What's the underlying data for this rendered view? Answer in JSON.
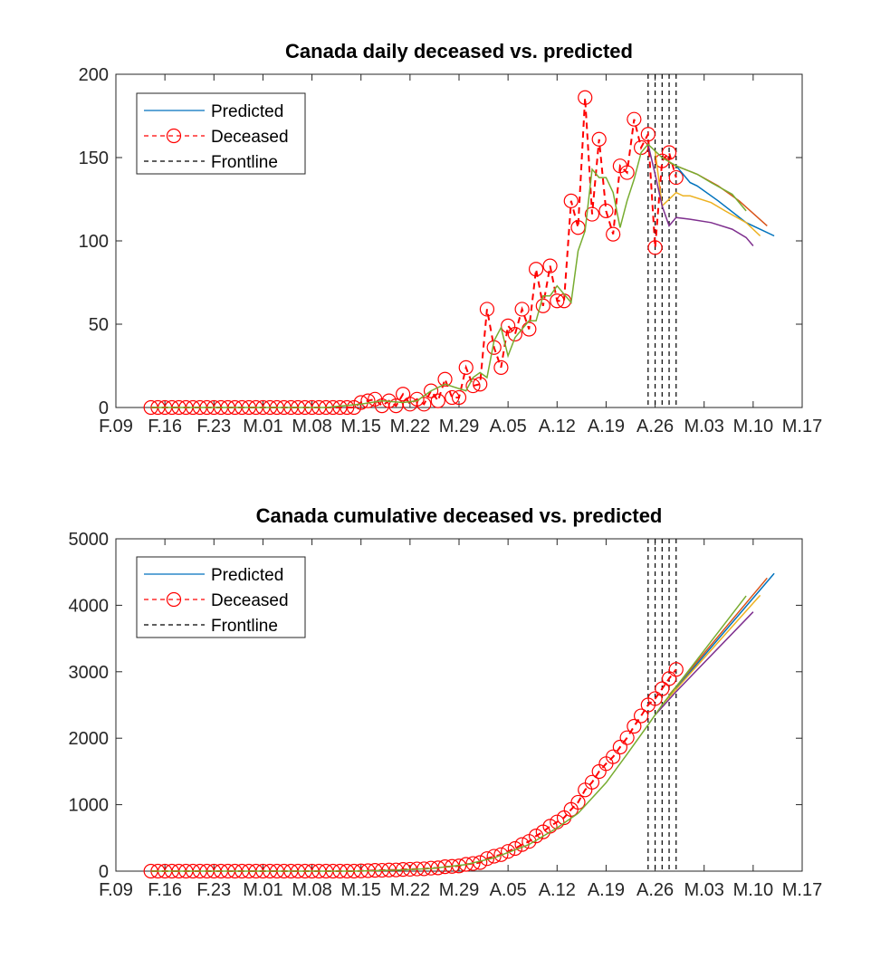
{
  "chart_data": [
    {
      "type": "line",
      "title": "Canada daily deceased vs. predicted",
      "xlabel": "",
      "ylabel": "",
      "xlim": [
        "02-09",
        "05-17"
      ],
      "ylim": [
        0,
        200
      ],
      "yticks": [
        0,
        50,
        100,
        150,
        200
      ],
      "xtick_dates": [
        "02-09",
        "02-16",
        "02-23",
        "03-01",
        "03-08",
        "03-15",
        "03-22",
        "03-29",
        "04-05",
        "04-12",
        "04-19",
        "04-26",
        "05-03",
        "05-10",
        "05-17"
      ],
      "xtick_labels": [
        "F.09",
        "F.16",
        "F.23",
        "M.01",
        "M.08",
        "M.15",
        "M.22",
        "M.29",
        "A.05",
        "A.12",
        "A.19",
        "A.26",
        "M.03",
        "M.10",
        "M.17"
      ],
      "grid": false,
      "legend_position": "top-left",
      "legend": [
        {
          "label": "Predicted",
          "color": "#0072BD",
          "style": "solid"
        },
        {
          "label": "Deceased",
          "color": "#FF0000",
          "style": "dashed-circle"
        },
        {
          "label": "Frontline",
          "color": "#000000",
          "style": "dashed"
        }
      ],
      "frontlines": [
        "04-25",
        "04-26",
        "04-27",
        "04-28",
        "04-29"
      ],
      "deceased": {
        "color": "#FF0000",
        "x": [
          "02-14",
          "02-15",
          "02-16",
          "02-17",
          "02-18",
          "02-19",
          "02-20",
          "02-21",
          "02-22",
          "02-23",
          "02-24",
          "02-25",
          "02-26",
          "02-27",
          "02-28",
          "02-29",
          "03-01",
          "03-02",
          "03-03",
          "03-04",
          "03-05",
          "03-06",
          "03-07",
          "03-08",
          "03-09",
          "03-10",
          "03-11",
          "03-12",
          "03-13",
          "03-14",
          "03-15",
          "03-16",
          "03-17",
          "03-18",
          "03-19",
          "03-20",
          "03-21",
          "03-22",
          "03-23",
          "03-24",
          "03-25",
          "03-26",
          "03-27",
          "03-28",
          "03-29",
          "03-30",
          "03-31",
          "04-01",
          "04-02",
          "04-03",
          "04-04",
          "04-05",
          "04-06",
          "04-07",
          "04-08",
          "04-09",
          "04-10",
          "04-11",
          "04-12",
          "04-13",
          "04-14",
          "04-15",
          "04-16",
          "04-17",
          "04-18",
          "04-19",
          "04-20",
          "04-21",
          "04-22",
          "04-23",
          "04-24",
          "04-25",
          "04-26",
          "04-27",
          "04-28",
          "04-29"
        ],
        "values": [
          0,
          0,
          0,
          0,
          0,
          0,
          0,
          0,
          0,
          0,
          0,
          0,
          0,
          0,
          0,
          0,
          0,
          0,
          0,
          0,
          0,
          0,
          0,
          0,
          0,
          0,
          0,
          0,
          0,
          0,
          3,
          4,
          5,
          1,
          4,
          1,
          8,
          2,
          5,
          2,
          10,
          4,
          17,
          6,
          6,
          24,
          13,
          14,
          59,
          36,
          24,
          49,
          44,
          59,
          47,
          83,
          61,
          85,
          64,
          64,
          124,
          108,
          186,
          116,
          161,
          118,
          104,
          145,
          141,
          173,
          156,
          164,
          96,
          148,
          153,
          138
        ]
      },
      "predictions": [
        {
          "color": "#0072BD",
          "x": [
            "04-29",
            "05-01",
            "05-02",
            "05-05",
            "05-09",
            "05-13"
          ],
          "values": [
            145,
            135,
            133,
            124,
            111,
            103
          ]
        },
        {
          "color": "#D95319",
          "x": [
            "04-28",
            "04-29",
            "05-02",
            "05-05",
            "05-08",
            "05-12"
          ],
          "values": [
            147,
            145,
            140,
            133,
            124,
            109
          ]
        },
        {
          "color": "#EDB120",
          "x": [
            "04-26",
            "04-27",
            "04-29",
            "04-30",
            "05-01",
            "05-04",
            "05-06",
            "05-09",
            "05-11"
          ],
          "values": [
            154,
            121,
            129,
            127,
            127,
            123,
            118,
            111,
            103
          ]
        },
        {
          "color": "#7E2F8E",
          "x": [
            "04-25",
            "04-26",
            "04-27",
            "04-28",
            "04-29",
            "05-01",
            "05-04",
            "05-07",
            "05-09",
            "05-10"
          ],
          "values": [
            158,
            140,
            121,
            109,
            114,
            113,
            111,
            107,
            102,
            97
          ]
        },
        {
          "color": "#77AC30",
          "x": [
            "02-14",
            "03-10",
            "03-15",
            "03-18",
            "03-21",
            "03-23",
            "03-25",
            "03-27",
            "03-30",
            "03-31",
            "04-01",
            "04-02",
            "04-03",
            "04-04",
            "04-05",
            "04-06",
            "04-08",
            "04-09",
            "04-10",
            "04-11",
            "04-12",
            "04-14",
            "04-15",
            "04-16",
            "04-17",
            "04-18",
            "04-19",
            "04-20",
            "04-21",
            "04-22",
            "04-23",
            "04-24",
            "04-25",
            "04-27",
            "04-29",
            "05-02",
            "05-04",
            "05-07",
            "05-09"
          ],
          "values": [
            0,
            0,
            2,
            4,
            3,
            4,
            10,
            14,
            10,
            18,
            21,
            18,
            40,
            48,
            31,
            42,
            52,
            52,
            67,
            67,
            73,
            63,
            94,
            106,
            143,
            138,
            138,
            129,
            108,
            124,
            137,
            153,
            158,
            150,
            145,
            140,
            135,
            128,
            118
          ]
        }
      ]
    },
    {
      "type": "line",
      "title": "Canada cumulative deceased vs. predicted",
      "xlabel": "",
      "ylabel": "",
      "xlim": [
        "02-09",
        "05-17"
      ],
      "ylim": [
        0,
        5000
      ],
      "yticks": [
        0,
        1000,
        2000,
        3000,
        4000,
        5000
      ],
      "xtick_dates": [
        "02-09",
        "02-16",
        "02-23",
        "03-01",
        "03-08",
        "03-15",
        "03-22",
        "03-29",
        "04-05",
        "04-12",
        "04-19",
        "04-26",
        "05-03",
        "05-10",
        "05-17"
      ],
      "xtick_labels": [
        "F.09",
        "F.16",
        "F.23",
        "M.01",
        "M.08",
        "M.15",
        "M.22",
        "M.29",
        "A.05",
        "A.12",
        "A.19",
        "A.26",
        "M.03",
        "M.10",
        "M.17"
      ],
      "grid": false,
      "legend_position": "top-left",
      "legend": [
        {
          "label": "Predicted",
          "color": "#0072BD",
          "style": "solid"
        },
        {
          "label": "Deceased",
          "color": "#FF0000",
          "style": "dashed-circle"
        },
        {
          "label": "Frontline",
          "color": "#000000",
          "style": "dashed"
        }
      ],
      "frontlines": [
        "04-25",
        "04-26",
        "04-27",
        "04-28",
        "04-29"
      ],
      "deceased": {
        "color": "#FF0000",
        "x": [
          "02-14",
          "02-15",
          "02-16",
          "02-17",
          "02-18",
          "02-19",
          "02-20",
          "02-21",
          "02-22",
          "02-23",
          "02-24",
          "02-25",
          "02-26",
          "02-27",
          "02-28",
          "02-29",
          "03-01",
          "03-02",
          "03-03",
          "03-04",
          "03-05",
          "03-06",
          "03-07",
          "03-08",
          "03-09",
          "03-10",
          "03-11",
          "03-12",
          "03-13",
          "03-14",
          "03-15",
          "03-16",
          "03-17",
          "03-18",
          "03-19",
          "03-20",
          "03-21",
          "03-22",
          "03-23",
          "03-24",
          "03-25",
          "03-26",
          "03-27",
          "03-28",
          "03-29",
          "03-30",
          "03-31",
          "04-01",
          "04-02",
          "04-03",
          "04-04",
          "04-05",
          "04-06",
          "04-07",
          "04-08",
          "04-09",
          "04-10",
          "04-11",
          "04-12",
          "04-13",
          "04-14",
          "04-15",
          "04-16",
          "04-17",
          "04-18",
          "04-19",
          "04-20",
          "04-21",
          "04-22",
          "04-23",
          "04-24",
          "04-25",
          "04-26",
          "04-27",
          "04-28",
          "04-29"
        ],
        "values": [
          0,
          0,
          0,
          0,
          0,
          0,
          0,
          0,
          0,
          0,
          0,
          0,
          0,
          0,
          0,
          0,
          0,
          0,
          0,
          0,
          0,
          0,
          0,
          0,
          0,
          0,
          0,
          0,
          0,
          0,
          3,
          7,
          12,
          13,
          17,
          18,
          26,
          28,
          33,
          35,
          45,
          49,
          66,
          72,
          78,
          102,
          115,
          129,
          188,
          224,
          248,
          297,
          341,
          400,
          447,
          530,
          591,
          676,
          740,
          804,
          928,
          1036,
          1222,
          1338,
          1499,
          1617,
          1721,
          1866,
          2007,
          2180,
          2336,
          2500,
          2596,
          2744,
          2897,
          3035
        ]
      },
      "predictions": [
        {
          "color": "#0072BD",
          "x": [
            "04-29",
            "05-13"
          ],
          "values": [
            2750,
            4480
          ]
        },
        {
          "color": "#D95319",
          "x": [
            "04-28",
            "05-12"
          ],
          "values": [
            2650,
            4410
          ]
        },
        {
          "color": "#EDB120",
          "x": [
            "04-27",
            "05-11"
          ],
          "values": [
            2500,
            4150
          ]
        },
        {
          "color": "#7E2F8E",
          "x": [
            "04-26",
            "04-29",
            "05-10"
          ],
          "values": [
            2350,
            2700,
            3900
          ]
        },
        {
          "color": "#77AC30",
          "x": [
            "02-14",
            "03-14",
            "03-20",
            "03-25",
            "03-30",
            "04-03",
            "04-08",
            "04-12",
            "04-15",
            "04-19",
            "04-22",
            "04-25",
            "04-27",
            "05-09"
          ],
          "values": [
            0,
            0,
            15,
            40,
            100,
            200,
            400,
            650,
            870,
            1330,
            1760,
            2200,
            2500,
            4140
          ]
        }
      ]
    }
  ]
}
